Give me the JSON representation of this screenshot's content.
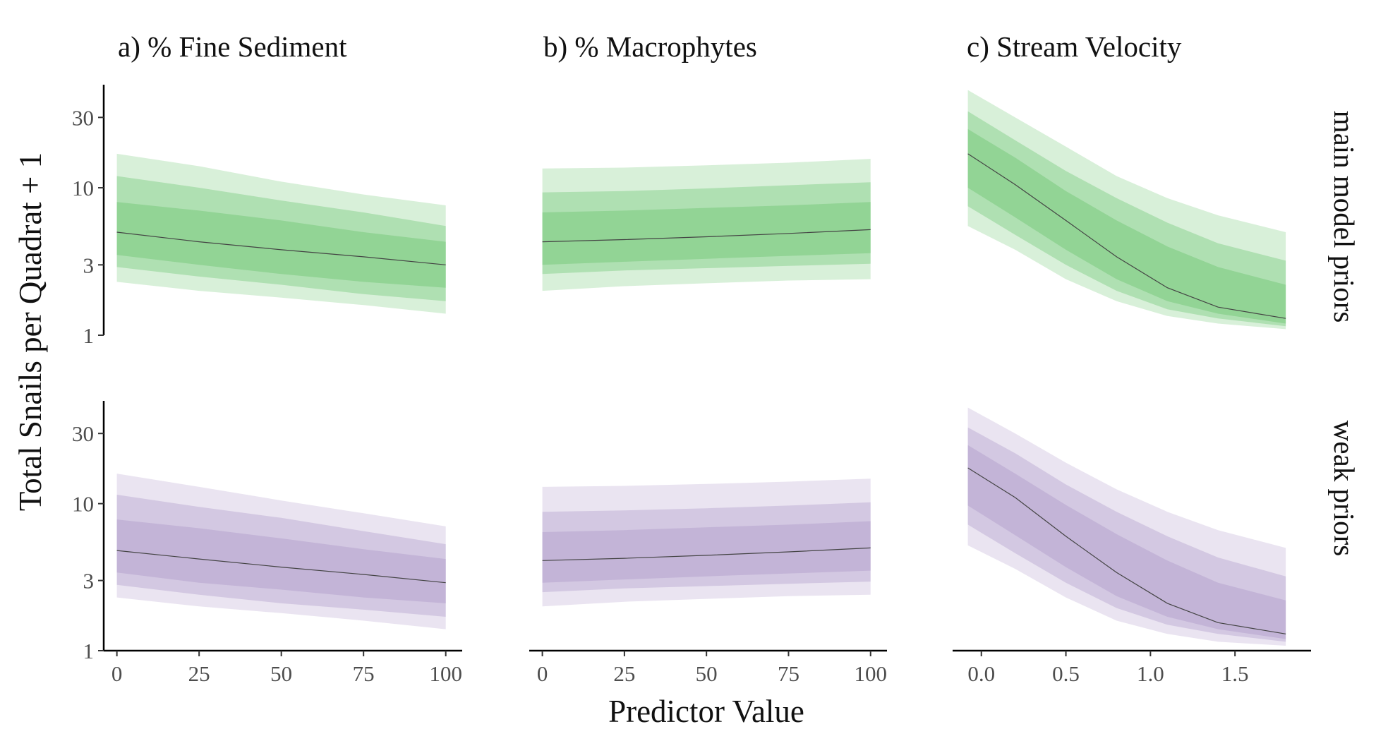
{
  "colors": {
    "main_model_priors": "#7fcc82",
    "weak_priors": "#b9a6d0",
    "median_line": "#444444",
    "axis": "#000000"
  },
  "chart_data": {
    "type": "line",
    "xlabel": "Predictor Value",
    "ylabel": "Total Snails per Quadrat + 1",
    "y_scale": "log",
    "ylim": [
      1,
      50
    ],
    "y_ticks": [
      1,
      3,
      10,
      30
    ],
    "y_tick_labels": [
      "1",
      "3",
      "10",
      "30"
    ],
    "band_opacity": [
      0.3,
      0.45,
      0.6
    ],
    "rows": [
      {
        "label": "main model priors",
        "color_key": "main_model_priors"
      },
      {
        "label": "weak priors",
        "color_key": "weak_priors"
      }
    ],
    "panels": [
      {
        "title": "a) % Fine Sediment",
        "xlim": [
          -4,
          105
        ],
        "x_ticks": [
          0,
          25,
          50,
          75,
          100
        ],
        "x_tick_labels": [
          "0",
          "25",
          "50",
          "75",
          "100"
        ],
        "x": [
          0,
          25,
          50,
          75,
          100
        ],
        "rows": [
          {
            "median": [
              5.0,
              4.3,
              3.8,
              3.4,
              3.0
            ],
            "bands": [
              {
                "level": "outer",
                "lower": [
                  2.3,
                  2.0,
                  1.8,
                  1.6,
                  1.4
                ],
                "upper": [
                  17,
                  14,
                  11,
                  9,
                  7.6
                ]
              },
              {
                "level": "middle",
                "lower": [
                  2.9,
                  2.5,
                  2.2,
                  1.9,
                  1.7
                ],
                "upper": [
                  12,
                  10,
                  8.2,
                  6.8,
                  5.5
                ]
              },
              {
                "level": "inner",
                "lower": [
                  3.5,
                  3.0,
                  2.6,
                  2.3,
                  2.1
                ],
                "upper": [
                  8,
                  7,
                  6,
                  5,
                  4.3
                ]
              }
            ]
          },
          {
            "median": [
              4.8,
              4.2,
              3.7,
              3.3,
              2.9
            ],
            "bands": [
              {
                "level": "outer",
                "lower": [
                  2.3,
                  2.0,
                  1.8,
                  1.6,
                  1.4
                ],
                "upper": [
                  16,
                  13,
                  10.5,
                  8.6,
                  7.0
                ]
              },
              {
                "level": "middle",
                "lower": [
                  2.8,
                  2.4,
                  2.1,
                  1.9,
                  1.7
                ],
                "upper": [
                  11.5,
                  9.5,
                  8.0,
                  6.5,
                  5.3
                ]
              },
              {
                "level": "inner",
                "lower": [
                  3.4,
                  2.9,
                  2.6,
                  2.3,
                  2.1
                ],
                "upper": [
                  7.8,
                  6.8,
                  5.8,
                  4.9,
                  4.2
                ]
              }
            ]
          }
        ]
      },
      {
        "title": "b) % Macrophytes",
        "xlim": [
          -4,
          105
        ],
        "x_ticks": [
          0,
          25,
          50,
          75,
          100
        ],
        "x_tick_labels": [
          "0",
          "25",
          "50",
          "75",
          "100"
        ],
        "x": [
          0,
          25,
          50,
          75,
          100
        ],
        "rows": [
          {
            "median": [
              4.3,
              4.45,
              4.65,
              4.9,
              5.2
            ],
            "bands": [
              {
                "level": "outer",
                "lower": [
                  2.0,
                  2.15,
                  2.25,
                  2.35,
                  2.4
                ],
                "upper": [
                  13.5,
                  13.7,
                  14.2,
                  14.8,
                  15.7
                ]
              },
              {
                "level": "middle",
                "lower": [
                  2.6,
                  2.75,
                  2.85,
                  2.95,
                  3.05
                ],
                "upper": [
                  9.3,
                  9.5,
                  9.9,
                  10.4,
                  10.9
                ]
              },
              {
                "level": "inner",
                "lower": [
                  3.0,
                  3.15,
                  3.3,
                  3.45,
                  3.6
                ],
                "upper": [
                  6.8,
                  7.0,
                  7.3,
                  7.6,
                  8.0
                ]
              }
            ]
          },
          {
            "median": [
              4.1,
              4.25,
              4.45,
              4.7,
              5.0
            ],
            "bands": [
              {
                "level": "outer",
                "lower": [
                  2.0,
                  2.15,
                  2.25,
                  2.35,
                  2.4
                ],
                "upper": [
                  13.0,
                  13.2,
                  13.6,
                  14.1,
                  14.8
                ]
              },
              {
                "level": "middle",
                "lower": [
                  2.5,
                  2.65,
                  2.75,
                  2.85,
                  2.95
                ],
                "upper": [
                  8.8,
                  9.0,
                  9.3,
                  9.7,
                  10.2
                ]
              },
              {
                "level": "inner",
                "lower": [
                  2.9,
                  3.05,
                  3.2,
                  3.35,
                  3.5
                ],
                "upper": [
                  6.4,
                  6.6,
                  6.9,
                  7.2,
                  7.6
                ]
              }
            ]
          }
        ]
      },
      {
        "title": "c) Stream Velocity",
        "xlim": [
          -0.17,
          1.95
        ],
        "x_ticks": [
          0,
          0.5,
          1.0,
          1.5
        ],
        "x_tick_labels": [
          "0.0",
          "0.5",
          "1.0",
          "1.5"
        ],
        "x": [
          -0.08,
          0.2,
          0.5,
          0.8,
          1.1,
          1.4,
          1.8
        ],
        "rows": [
          {
            "median": [
              17,
              10.5,
              6,
              3.4,
              2.1,
              1.55,
              1.3
            ],
            "bands": [
              {
                "level": "outer",
                "lower": [
                  5.5,
                  3.8,
                  2.4,
                  1.7,
                  1.35,
                  1.2,
                  1.1
                ],
                "upper": [
                  46,
                  30,
                  19,
                  12,
                  8.5,
                  6.5,
                  5.0
                ]
              },
              {
                "level": "middle",
                "lower": [
                  7.5,
                  4.8,
                  3.0,
                  2.0,
                  1.5,
                  1.3,
                  1.15
                ],
                "upper": [
                  33,
                  21,
                  13,
                  8.5,
                  5.8,
                  4.2,
                  3.2
                ]
              },
              {
                "level": "inner",
                "lower": [
                  10,
                  6.3,
                  3.8,
                  2.4,
                  1.7,
                  1.4,
                  1.2
                ],
                "upper": [
                  25,
                  16,
                  9.5,
                  6.0,
                  4.0,
                  2.9,
                  2.2
                ]
              }
            ]
          },
          {
            "median": [
              17.5,
              11,
              6,
              3.4,
              2.1,
              1.55,
              1.3
            ],
            "bands": [
              {
                "level": "outer",
                "lower": [
                  5.2,
                  3.6,
                  2.3,
                  1.6,
                  1.3,
                  1.15,
                  1.08
                ],
                "upper": [
                  45,
                  30,
                  19,
                  12.5,
                  8.8,
                  6.6,
                  5.0
                ]
              },
              {
                "level": "middle",
                "lower": [
                  7.2,
                  4.6,
                  2.9,
                  1.95,
                  1.5,
                  1.3,
                  1.15
                ],
                "upper": [
                  33,
                  22,
                  13.5,
                  8.8,
                  6.0,
                  4.3,
                  3.2
                ]
              },
              {
                "level": "inner",
                "lower": [
                  9.7,
                  6.1,
                  3.7,
                  2.35,
                  1.7,
                  1.4,
                  1.2
                ],
                "upper": [
                  25,
                  16,
                  9.8,
                  6.2,
                  4.1,
                  2.9,
                  2.2
                ]
              }
            ]
          }
        ]
      }
    ]
  }
}
